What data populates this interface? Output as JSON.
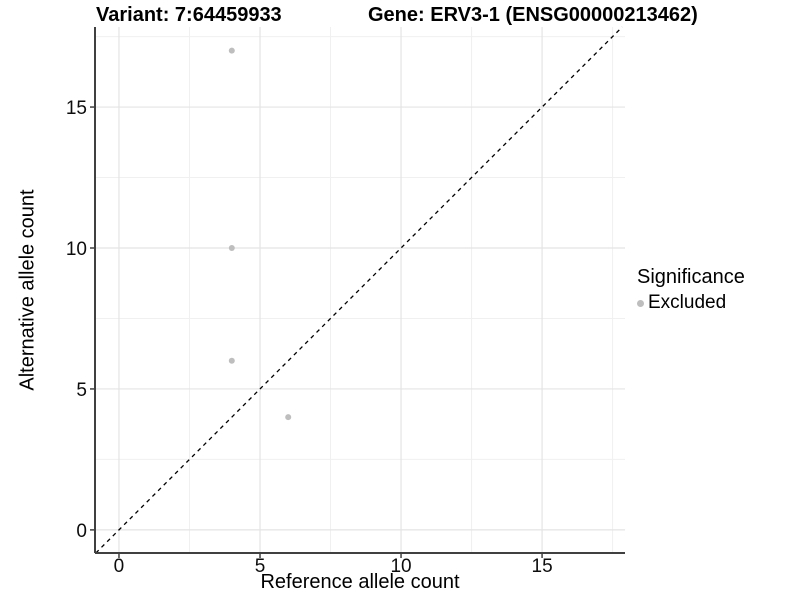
{
  "chart_data": {
    "type": "scatter",
    "titles": {
      "left": "Variant: 7:64459933",
      "right": "Gene: ERV3-1 (ENSG00000213462)"
    },
    "xlabel": "Reference allele count",
    "ylabel": "Alternative allele count",
    "x_ticks": [
      "0",
      "5",
      "10",
      "15"
    ],
    "x_tick_values": [
      0,
      5,
      10,
      15
    ],
    "y_ticks": [
      "0",
      "5",
      "10",
      "15"
    ],
    "y_tick_values": [
      0,
      5,
      10,
      15
    ],
    "minor_tick_values": [
      2.5,
      7.5,
      12.5,
      17.5
    ],
    "xlim": [
      -0.85,
      17.94
    ],
    "ylim": [
      -0.82,
      17.84
    ],
    "grid": "on",
    "reference_line": {
      "type": "identity",
      "slope": 1,
      "intercept": 0,
      "style": "dashed",
      "color": "#000000"
    },
    "series": [
      {
        "name": "Excluded",
        "color": "#bebebe",
        "points": [
          [
            4,
            17
          ],
          [
            4,
            10
          ],
          [
            4,
            6
          ],
          [
            6,
            4
          ]
        ]
      }
    ],
    "legend": {
      "position": "right",
      "title": "Significance",
      "items": [
        {
          "label": "Excluded",
          "color": "#bebebe",
          "marker": "circle"
        }
      ]
    },
    "colors": {
      "background": "#ffffff",
      "grid_major": "#e4e4e4",
      "grid_minor": "#f0f0f0",
      "axis_line": "#404040",
      "text": "#0d0d0d"
    }
  }
}
